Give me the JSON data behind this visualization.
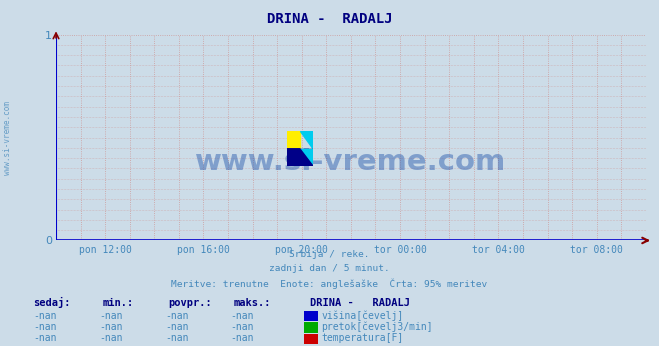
{
  "title": "DRINA -  RADALJ",
  "title_color": "#000080",
  "bg_color": "#ccdce8",
  "plot_bg_color": "#ccdce8",
  "watermark_text": "www.si-vreme.com",
  "watermark_color": "#2255aa",
  "watermark_alpha": 0.45,
  "subtitle_lines": [
    "Srbija / reke.",
    "zadnji dan / 5 minut.",
    "Meritve: trenutne  Enote: anglešaške  Črta: 95% meritev"
  ],
  "subtitle_color": "#4488bb",
  "xlabel_ticks": [
    "pon 12:00",
    "pon 16:00",
    "pon 20:00",
    "tor 00:00",
    "tor 04:00",
    "tor 08:00"
  ],
  "tick_color": "#4488bb",
  "ylim": [
    0,
    1
  ],
  "yticks": [
    0,
    1
  ],
  "grid_color_major": "#cc8888",
  "grid_color_minor": "#cc9999",
  "axis_color": "#0000cc",
  "arrow_color": "#880000",
  "legend_title": "DRINA -   RADALJ",
  "legend_title_color": "#000080",
  "legend_items": [
    {
      "label": "višina[čevelj]",
      "color": "#0000cc"
    },
    {
      "label": "pretok[čevelj3/min]",
      "color": "#00aa00"
    },
    {
      "label": "temperatura[F]",
      "color": "#cc0000"
    }
  ],
  "table_headers": [
    "sedaj:",
    "min.:",
    "povpr.:",
    "maks.:"
  ],
  "table_values": [
    "-nan",
    "-nan",
    "-nan",
    "-nan"
  ],
  "table_color": "#000080",
  "table_value_color": "#4488bb",
  "left_label_color": "#4488bb"
}
